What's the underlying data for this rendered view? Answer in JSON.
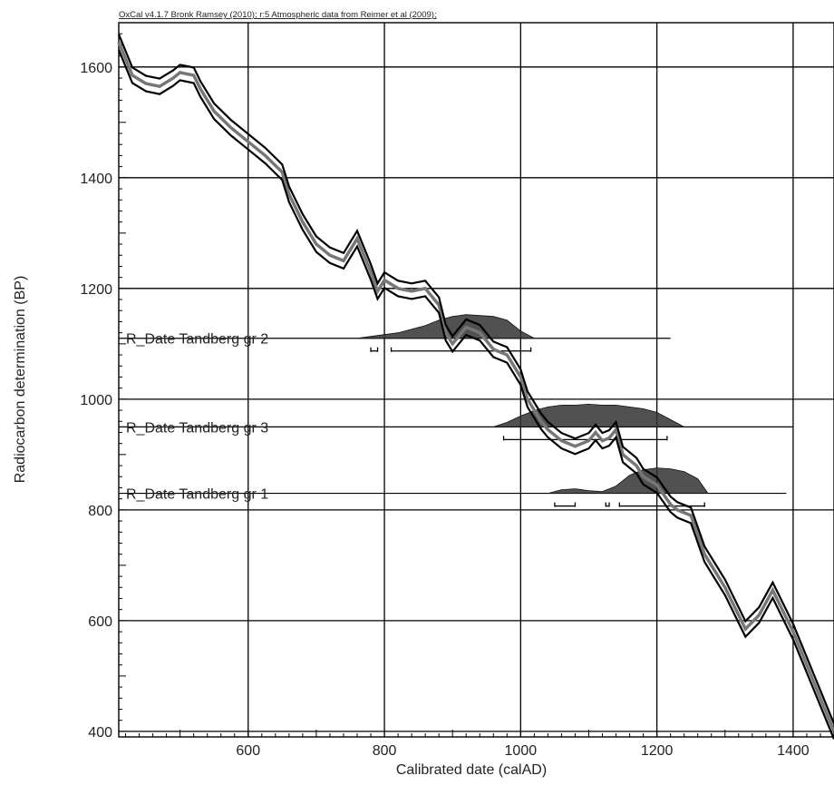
{
  "chart_data": {
    "type": "line",
    "title": "OxCal v4.1.7 Bronk Ramsey (2010); r:5 Atmospheric data from Reimer et al (2009);",
    "xlabel": "Calibrated date (calAD)",
    "ylabel": "Radiocarbon determination (BP)",
    "xlim": [
      410,
      1460
    ],
    "ylim": [
      390,
      1680
    ],
    "xticks": [
      600,
      800,
      1000,
      1200,
      1400
    ],
    "yticks": [
      400,
      600,
      800,
      1000,
      1200,
      1400,
      1600
    ],
    "grid": true,
    "calibration_curve": {
      "x": [
        410,
        430,
        450,
        470,
        490,
        500,
        520,
        530,
        550,
        575,
        600,
        625,
        650,
        660,
        680,
        700,
        720,
        740,
        760,
        770,
        780,
        790,
        800,
        820,
        840,
        860,
        880,
        890,
        900,
        910,
        920,
        940,
        960,
        970,
        980,
        1000,
        1010,
        1020,
        1030,
        1040,
        1060,
        1080,
        1100,
        1110,
        1120,
        1130,
        1140,
        1150,
        1170,
        1180,
        1200,
        1220,
        1230,
        1250,
        1270,
        1300,
        1330,
        1350,
        1370,
        1380,
        1400,
        1430,
        1460
      ],
      "y": [
        1645,
        1585,
        1570,
        1565,
        1580,
        1590,
        1585,
        1560,
        1520,
        1490,
        1465,
        1440,
        1410,
        1370,
        1320,
        1280,
        1260,
        1250,
        1290,
        1260,
        1230,
        1195,
        1215,
        1200,
        1195,
        1200,
        1170,
        1120,
        1100,
        1115,
        1130,
        1120,
        1090,
        1085,
        1080,
        1040,
        1000,
        980,
        960,
        945,
        925,
        915,
        925,
        940,
        925,
        930,
        945,
        900,
        880,
        860,
        845,
        810,
        800,
        790,
        720,
        660,
        585,
        610,
        655,
        630,
        580,
        490,
        400
      ],
      "band_width": 14
    },
    "samples": [
      {
        "name": "R_Date Tandberg gr 2",
        "radiocarbon_bp": 1110,
        "range_from": 760,
        "range_to": 1220,
        "distribution_x": [
          760,
          780,
          800,
          820,
          840,
          860,
          880,
          900,
          920,
          940,
          960,
          980,
          1000,
          1020
        ],
        "distribution_h": [
          0,
          2,
          4,
          6,
          10,
          14,
          20,
          24,
          26,
          25,
          24,
          20,
          8,
          0
        ],
        "hpd_intervals": [
          [
            780,
            790
          ],
          [
            810,
            1015
          ]
        ]
      },
      {
        "name": "R_Date Tandberg gr 3",
        "radiocarbon_bp": 950,
        "range_from": 960,
        "range_to": 1400,
        "distribution_x": [
          960,
          980,
          1000,
          1020,
          1040,
          1060,
          1080,
          1100,
          1120,
          1140,
          1160,
          1180,
          1200,
          1220,
          1240
        ],
        "distribution_h": [
          0,
          5,
          12,
          18,
          22,
          24,
          24,
          25,
          24,
          24,
          22,
          20,
          16,
          8,
          0
        ],
        "hpd_intervals": [
          [
            975,
            1215
          ]
        ]
      },
      {
        "name": "R_Date Tandberg gr 1",
        "radiocarbon_bp": 830,
        "range_from": 975,
        "range_to": 1390,
        "distribution_x": [
          1040,
          1060,
          1080,
          1100,
          1120,
          1140,
          1160,
          1180,
          1200,
          1220,
          1240,
          1260,
          1275
        ],
        "distribution_h": [
          0,
          4,
          5,
          3,
          2,
          8,
          20,
          26,
          28,
          27,
          24,
          16,
          0
        ],
        "hpd_intervals": [
          [
            1050,
            1080
          ],
          [
            1125,
            1130
          ],
          [
            1145,
            1270
          ]
        ]
      }
    ]
  }
}
